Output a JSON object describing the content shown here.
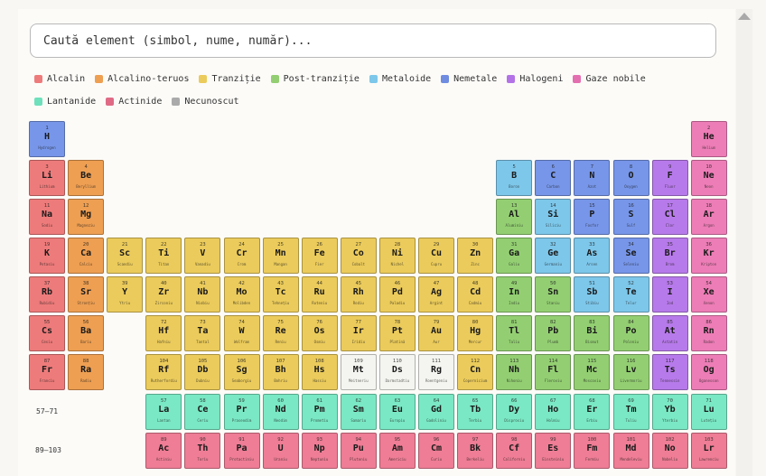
{
  "search": {
    "placeholder": "Caută element (simbol, nume, număr)..."
  },
  "colors": {
    "alkali": "#ee7b7b",
    "alkaline": "#ee9f52",
    "transition": "#ebcb5b",
    "post": "#93cf72",
    "metalloid": "#7dc7ea",
    "nonmetal": "#7796e9",
    "halogen": "#b77aea",
    "noble": "#ed7db6",
    "lanthanide": "#7ae8c4",
    "actinide": "#ee7d95",
    "unknown": "#f4f4f0"
  },
  "legend": [
    {
      "label": "Alcalin",
      "color": "#ee7b7b"
    },
    {
      "label": "Alcalino-teruos",
      "color": "#ee9f52"
    },
    {
      "label": "Tranziție",
      "color": "#ebcb5b"
    },
    {
      "label": "Post-tranziție",
      "color": "#93cf72"
    },
    {
      "label": "Metaloide",
      "color": "#7dc7ea"
    },
    {
      "label": "Nemetale",
      "color": "#6f8ce0"
    },
    {
      "label": "Halogeni",
      "color": "#b373e6"
    },
    {
      "label": "Gaze nobile",
      "color": "#e36fb0"
    },
    {
      "label": "Lantanide",
      "color": "#6ee0bb"
    },
    {
      "label": "Actinide",
      "color": "#e06a85"
    },
    {
      "label": "Necunoscut",
      "color": "#aaaaaa"
    }
  ],
  "row_labels": {
    "lanthanides": "57–71",
    "actinides": "89–103"
  },
  "elements": [
    {
      "n": 1,
      "s": "H",
      "name": "Hydrogen",
      "c": "nonmetal",
      "r": 1,
      "g": 1
    },
    {
      "n": 2,
      "s": "He",
      "name": "Helium",
      "c": "noble",
      "r": 1,
      "g": 18
    },
    {
      "n": 3,
      "s": "Li",
      "name": "Lithium",
      "c": "alkali",
      "r": 2,
      "g": 1
    },
    {
      "n": 4,
      "s": "Be",
      "name": "Beryllium",
      "c": "alkaline",
      "r": 2,
      "g": 2
    },
    {
      "n": 5,
      "s": "B",
      "name": "Boron",
      "c": "metalloid",
      "r": 2,
      "g": 13
    },
    {
      "n": 6,
      "s": "C",
      "name": "Carbon",
      "c": "nonmetal",
      "r": 2,
      "g": 14
    },
    {
      "n": 7,
      "s": "N",
      "name": "Azot",
      "c": "nonmetal",
      "r": 2,
      "g": 15
    },
    {
      "n": 8,
      "s": "O",
      "name": "Oxygen",
      "c": "nonmetal",
      "r": 2,
      "g": 16
    },
    {
      "n": 9,
      "s": "F",
      "name": "Fluor",
      "c": "halogen",
      "r": 2,
      "g": 17
    },
    {
      "n": 10,
      "s": "Ne",
      "name": "Neon",
      "c": "noble",
      "r": 2,
      "g": 18
    },
    {
      "n": 11,
      "s": "Na",
      "name": "Sodiu",
      "c": "alkali",
      "r": 3,
      "g": 1
    },
    {
      "n": 12,
      "s": "Mg",
      "name": "Magneziu",
      "c": "alkaline",
      "r": 3,
      "g": 2
    },
    {
      "n": 13,
      "s": "Al",
      "name": "Aluminiu",
      "c": "post",
      "r": 3,
      "g": 13
    },
    {
      "n": 14,
      "s": "Si",
      "name": "Siliciu",
      "c": "metalloid",
      "r": 3,
      "g": 14
    },
    {
      "n": 15,
      "s": "P",
      "name": "Fosfor",
      "c": "nonmetal",
      "r": 3,
      "g": 15
    },
    {
      "n": 16,
      "s": "S",
      "name": "Sulf",
      "c": "nonmetal",
      "r": 3,
      "g": 16
    },
    {
      "n": 17,
      "s": "Cl",
      "name": "Clor",
      "c": "halogen",
      "r": 3,
      "g": 17
    },
    {
      "n": 18,
      "s": "Ar",
      "name": "Argon",
      "c": "noble",
      "r": 3,
      "g": 18
    },
    {
      "n": 19,
      "s": "K",
      "name": "Potasiu",
      "c": "alkali",
      "r": 4,
      "g": 1
    },
    {
      "n": 20,
      "s": "Ca",
      "name": "Calciu",
      "c": "alkaline",
      "r": 4,
      "g": 2
    },
    {
      "n": 21,
      "s": "Sc",
      "name": "Scandiu",
      "c": "transition",
      "r": 4,
      "g": 3
    },
    {
      "n": 22,
      "s": "Ti",
      "name": "Titan",
      "c": "transition",
      "r": 4,
      "g": 4
    },
    {
      "n": 23,
      "s": "V",
      "name": "Vanadiu",
      "c": "transition",
      "r": 4,
      "g": 5
    },
    {
      "n": 24,
      "s": "Cr",
      "name": "Crom",
      "c": "transition",
      "r": 4,
      "g": 6
    },
    {
      "n": 25,
      "s": "Mn",
      "name": "Mangan",
      "c": "transition",
      "r": 4,
      "g": 7
    },
    {
      "n": 26,
      "s": "Fe",
      "name": "Fier",
      "c": "transition",
      "r": 4,
      "g": 8
    },
    {
      "n": 27,
      "s": "Co",
      "name": "Cobalt",
      "c": "transition",
      "r": 4,
      "g": 9
    },
    {
      "n": 28,
      "s": "Ni",
      "name": "Nichel",
      "c": "transition",
      "r": 4,
      "g": 10
    },
    {
      "n": 29,
      "s": "Cu",
      "name": "Cupru",
      "c": "transition",
      "r": 4,
      "g": 11
    },
    {
      "n": 30,
      "s": "Zn",
      "name": "Zinc",
      "c": "transition",
      "r": 4,
      "g": 12
    },
    {
      "n": 31,
      "s": "Ga",
      "name": "Galiu",
      "c": "post",
      "r": 4,
      "g": 13
    },
    {
      "n": 32,
      "s": "Ge",
      "name": "Germaniu",
      "c": "metalloid",
      "r": 4,
      "g": 14
    },
    {
      "n": 33,
      "s": "As",
      "name": "Arsen",
      "c": "metalloid",
      "r": 4,
      "g": 15
    },
    {
      "n": 34,
      "s": "Se",
      "name": "Seleniu",
      "c": "nonmetal",
      "r": 4,
      "g": 16
    },
    {
      "n": 35,
      "s": "Br",
      "name": "Brom",
      "c": "halogen",
      "r": 4,
      "g": 17
    },
    {
      "n": 36,
      "s": "Kr",
      "name": "Kripton",
      "c": "noble",
      "r": 4,
      "g": 18
    },
    {
      "n": 37,
      "s": "Rb",
      "name": "Rubidiu",
      "c": "alkali",
      "r": 5,
      "g": 1
    },
    {
      "n": 38,
      "s": "Sr",
      "name": "Stronțiu",
      "c": "alkaline",
      "r": 5,
      "g": 2
    },
    {
      "n": 39,
      "s": "Y",
      "name": "Ytriu",
      "c": "transition",
      "r": 5,
      "g": 3
    },
    {
      "n": 40,
      "s": "Zr",
      "name": "Zirconiu",
      "c": "transition",
      "r": 5,
      "g": 4
    },
    {
      "n": 41,
      "s": "Nb",
      "name": "Niobiu",
      "c": "transition",
      "r": 5,
      "g": 5
    },
    {
      "n": 42,
      "s": "Mo",
      "name": "Molibden",
      "c": "transition",
      "r": 5,
      "g": 6
    },
    {
      "n": 43,
      "s": "Tc",
      "name": "Tehnețiu",
      "c": "transition",
      "r": 5,
      "g": 7
    },
    {
      "n": 44,
      "s": "Ru",
      "name": "Ruteniu",
      "c": "transition",
      "r": 5,
      "g": 8
    },
    {
      "n": 45,
      "s": "Rh",
      "name": "Rodiu",
      "c": "transition",
      "r": 5,
      "g": 9
    },
    {
      "n": 46,
      "s": "Pd",
      "name": "Paladiu",
      "c": "transition",
      "r": 5,
      "g": 10
    },
    {
      "n": 47,
      "s": "Ag",
      "name": "Argint",
      "c": "transition",
      "r": 5,
      "g": 11
    },
    {
      "n": 48,
      "s": "Cd",
      "name": "Cadmiu",
      "c": "transition",
      "r": 5,
      "g": 12
    },
    {
      "n": 49,
      "s": "In",
      "name": "Indiu",
      "c": "post",
      "r": 5,
      "g": 13
    },
    {
      "n": 50,
      "s": "Sn",
      "name": "Staniu",
      "c": "post",
      "r": 5,
      "g": 14
    },
    {
      "n": 51,
      "s": "Sb",
      "name": "Stibiu",
      "c": "metalloid",
      "r": 5,
      "g": 15
    },
    {
      "n": 52,
      "s": "Te",
      "name": "Telur",
      "c": "metalloid",
      "r": 5,
      "g": 16
    },
    {
      "n": 53,
      "s": "I",
      "name": "Iod",
      "c": "halogen",
      "r": 5,
      "g": 17
    },
    {
      "n": 54,
      "s": "Xe",
      "name": "Xenon",
      "c": "noble",
      "r": 5,
      "g": 18
    },
    {
      "n": 55,
      "s": "Cs",
      "name": "Cesiu",
      "c": "alkali",
      "r": 6,
      "g": 1
    },
    {
      "n": 56,
      "s": "Ba",
      "name": "Bariu",
      "c": "alkaline",
      "r": 6,
      "g": 2
    },
    {
      "n": 72,
      "s": "Hf",
      "name": "Hafniu",
      "c": "transition",
      "r": 6,
      "g": 4
    },
    {
      "n": 73,
      "s": "Ta",
      "name": "Tantal",
      "c": "transition",
      "r": 6,
      "g": 5
    },
    {
      "n": 74,
      "s": "W",
      "name": "Wolfram",
      "c": "transition",
      "r": 6,
      "g": 6
    },
    {
      "n": 75,
      "s": "Re",
      "name": "Reniu",
      "c": "transition",
      "r": 6,
      "g": 7
    },
    {
      "n": 76,
      "s": "Os",
      "name": "Osmiu",
      "c": "transition",
      "r": 6,
      "g": 8
    },
    {
      "n": 77,
      "s": "Ir",
      "name": "Iridiu",
      "c": "transition",
      "r": 6,
      "g": 9
    },
    {
      "n": 78,
      "s": "Pt",
      "name": "Platină",
      "c": "transition",
      "r": 6,
      "g": 10
    },
    {
      "n": 79,
      "s": "Au",
      "name": "Aur",
      "c": "transition",
      "r": 6,
      "g": 11
    },
    {
      "n": 80,
      "s": "Hg",
      "name": "Mercur",
      "c": "transition",
      "r": 6,
      "g": 12
    },
    {
      "n": 81,
      "s": "Tl",
      "name": "Taliu",
      "c": "post",
      "r": 6,
      "g": 13
    },
    {
      "n": 82,
      "s": "Pb",
      "name": "Plumb",
      "c": "post",
      "r": 6,
      "g": 14
    },
    {
      "n": 83,
      "s": "Bi",
      "name": "Bismut",
      "c": "post",
      "r": 6,
      "g": 15
    },
    {
      "n": 84,
      "s": "Po",
      "name": "Poloniu",
      "c": "post",
      "r": 6,
      "g": 16
    },
    {
      "n": 85,
      "s": "At",
      "name": "Astatin",
      "c": "halogen",
      "r": 6,
      "g": 17
    },
    {
      "n": 86,
      "s": "Rn",
      "name": "Radon",
      "c": "noble",
      "r": 6,
      "g": 18
    },
    {
      "n": 87,
      "s": "Fr",
      "name": "Franciu",
      "c": "alkali",
      "r": 7,
      "g": 1
    },
    {
      "n": 88,
      "s": "Ra",
      "name": "Radiu",
      "c": "alkaline",
      "r": 7,
      "g": 2
    },
    {
      "n": 104,
      "s": "Rf",
      "name": "Rutherfordiu",
      "c": "transition",
      "r": 7,
      "g": 4
    },
    {
      "n": 105,
      "s": "Db",
      "name": "Dubniu",
      "c": "transition",
      "r": 7,
      "g": 5
    },
    {
      "n": 106,
      "s": "Sg",
      "name": "Seaborgiu",
      "c": "transition",
      "r": 7,
      "g": 6
    },
    {
      "n": 107,
      "s": "Bh",
      "name": "Bohriu",
      "c": "transition",
      "r": 7,
      "g": 7
    },
    {
      "n": 108,
      "s": "Hs",
      "name": "Hassiu",
      "c": "transition",
      "r": 7,
      "g": 8
    },
    {
      "n": 109,
      "s": "Mt",
      "name": "Meitneriu",
      "c": "unknown",
      "r": 7,
      "g": 9
    },
    {
      "n": 110,
      "s": "Ds",
      "name": "Darmstadtiu",
      "c": "unknown",
      "r": 7,
      "g": 10
    },
    {
      "n": 111,
      "s": "Rg",
      "name": "Roentgeniu",
      "c": "unknown",
      "r": 7,
      "g": 11
    },
    {
      "n": 112,
      "s": "Cn",
      "name": "Copernicium",
      "c": "transition",
      "r": 7,
      "g": 12
    },
    {
      "n": 113,
      "s": "Nh",
      "name": "Nihoniu",
      "c": "post",
      "r": 7,
      "g": 13
    },
    {
      "n": 114,
      "s": "Fl",
      "name": "Fleroviu",
      "c": "post",
      "r": 7,
      "g": 14
    },
    {
      "n": 115,
      "s": "Mc",
      "name": "Moscoviu",
      "c": "post",
      "r": 7,
      "g": 15
    },
    {
      "n": 116,
      "s": "Lv",
      "name": "Livermoriu",
      "c": "post",
      "r": 7,
      "g": 16
    },
    {
      "n": 117,
      "s": "Ts",
      "name": "Tennessin",
      "c": "halogen",
      "r": 7,
      "g": 17
    },
    {
      "n": 118,
      "s": "Og",
      "name": "Oganesson",
      "c": "noble",
      "r": 7,
      "g": 18
    },
    {
      "n": 57,
      "s": "La",
      "name": "Lantan",
      "c": "lanthanide",
      "r": 9,
      "g": 4
    },
    {
      "n": 58,
      "s": "Ce",
      "name": "Ceriu",
      "c": "lanthanide",
      "r": 9,
      "g": 5
    },
    {
      "n": 59,
      "s": "Pr",
      "name": "Praseodim",
      "c": "lanthanide",
      "r": 9,
      "g": 6
    },
    {
      "n": 60,
      "s": "Nd",
      "name": "Neodim",
      "c": "lanthanide",
      "r": 9,
      "g": 7
    },
    {
      "n": 61,
      "s": "Pm",
      "name": "Prometiu",
      "c": "lanthanide",
      "r": 9,
      "g": 8
    },
    {
      "n": 62,
      "s": "Sm",
      "name": "Samariu",
      "c": "lanthanide",
      "r": 9,
      "g": 9
    },
    {
      "n": 63,
      "s": "Eu",
      "name": "Europiu",
      "c": "lanthanide",
      "r": 9,
      "g": 10
    },
    {
      "n": 64,
      "s": "Gd",
      "name": "Gadoliniu",
      "c": "lanthanide",
      "r": 9,
      "g": 11
    },
    {
      "n": 65,
      "s": "Tb",
      "name": "Terbiu",
      "c": "lanthanide",
      "r": 9,
      "g": 12
    },
    {
      "n": 66,
      "s": "Dy",
      "name": "Disprosiu",
      "c": "lanthanide",
      "r": 9,
      "g": 13
    },
    {
      "n": 67,
      "s": "Ho",
      "name": "Holmiu",
      "c": "lanthanide",
      "r": 9,
      "g": 14
    },
    {
      "n": 68,
      "s": "Er",
      "name": "Erbiu",
      "c": "lanthanide",
      "r": 9,
      "g": 15
    },
    {
      "n": 69,
      "s": "Tm",
      "name": "Tuliu",
      "c": "lanthanide",
      "r": 9,
      "g": 16
    },
    {
      "n": 70,
      "s": "Yb",
      "name": "Yterbiu",
      "c": "lanthanide",
      "r": 9,
      "g": 17
    },
    {
      "n": 71,
      "s": "Lu",
      "name": "Lutețiu",
      "c": "lanthanide",
      "r": 9,
      "g": 18
    },
    {
      "n": 89,
      "s": "Ac",
      "name": "Actiniu",
      "c": "actinide",
      "r": 10,
      "g": 4
    },
    {
      "n": 90,
      "s": "Th",
      "name": "Toriu",
      "c": "actinide",
      "r": 10,
      "g": 5
    },
    {
      "n": 91,
      "s": "Pa",
      "name": "Protactiniu",
      "c": "actinide",
      "r": 10,
      "g": 6
    },
    {
      "n": 92,
      "s": "U",
      "name": "Uraniu",
      "c": "actinide",
      "r": 10,
      "g": 7
    },
    {
      "n": 93,
      "s": "Np",
      "name": "Neptuniu",
      "c": "actinide",
      "r": 10,
      "g": 8
    },
    {
      "n": 94,
      "s": "Pu",
      "name": "Plutoniu",
      "c": "actinide",
      "r": 10,
      "g": 9
    },
    {
      "n": 95,
      "s": "Am",
      "name": "Americiu",
      "c": "actinide",
      "r": 10,
      "g": 10
    },
    {
      "n": 96,
      "s": "Cm",
      "name": "Curiu",
      "c": "actinide",
      "r": 10,
      "g": 11
    },
    {
      "n": 97,
      "s": "Bk",
      "name": "Berkeliu",
      "c": "actinide",
      "r": 10,
      "g": 12
    },
    {
      "n": 98,
      "s": "Cf",
      "name": "Californiu",
      "c": "actinide",
      "r": 10,
      "g": 13
    },
    {
      "n": 99,
      "s": "Es",
      "name": "Einsteiniu",
      "c": "actinide",
      "r": 10,
      "g": 14
    },
    {
      "n": 100,
      "s": "Fm",
      "name": "Fermiu",
      "c": "actinide",
      "r": 10,
      "g": 15
    },
    {
      "n": 101,
      "s": "Md",
      "name": "Mendeleviu",
      "c": "actinide",
      "r": 10,
      "g": 16
    },
    {
      "n": 102,
      "s": "No",
      "name": "Nobeliu",
      "c": "actinide",
      "r": 10,
      "g": 17
    },
    {
      "n": 103,
      "s": "Lr",
      "name": "Lawrenciu",
      "c": "actinide",
      "r": 10,
      "g": 18
    }
  ]
}
